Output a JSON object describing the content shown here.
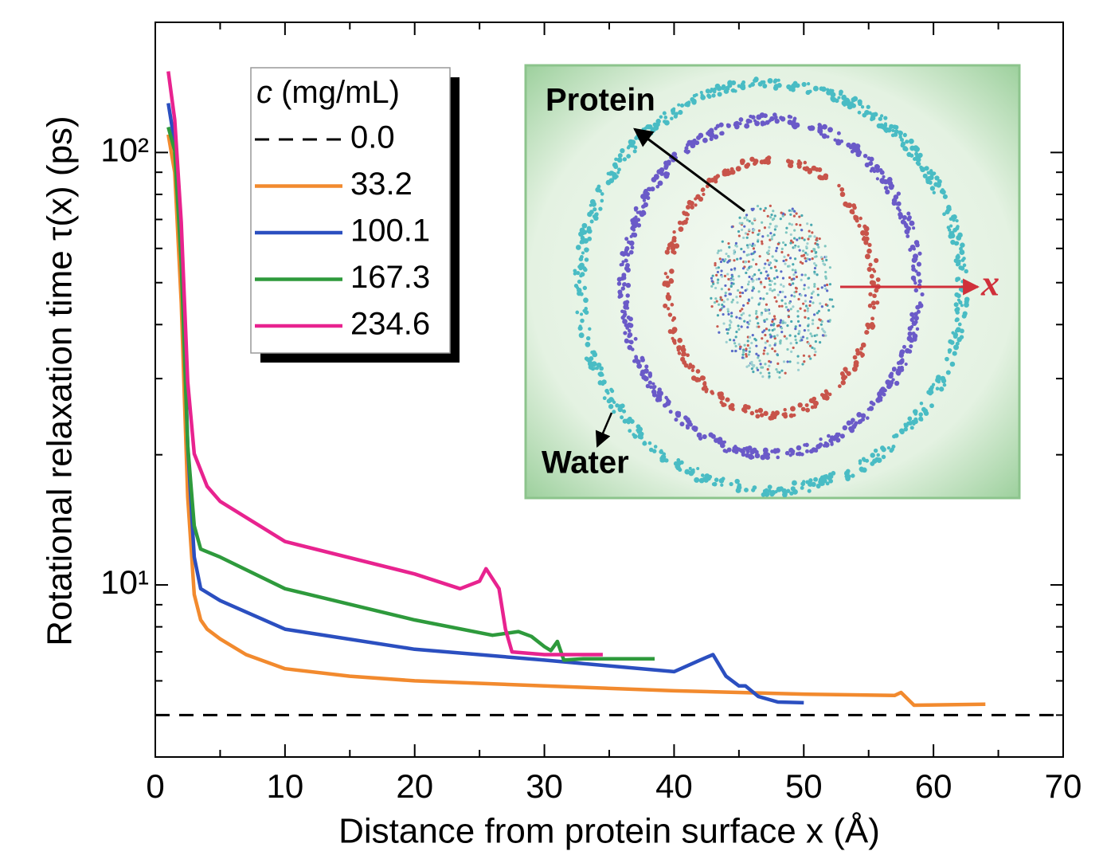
{
  "chart_data": {
    "type": "line",
    "x_label": "Distance from protein surface x (Å)",
    "y_label": "Rotational relaxation time τ(x) (ps)",
    "xlim": [
      0,
      70
    ],
    "xticks": [
      0,
      10,
      20,
      30,
      40,
      50,
      60,
      70
    ],
    "minor_xticks": [
      5,
      15,
      25,
      35,
      45,
      55,
      65
    ],
    "ylim": [
      4,
      200
    ],
    "log_y": true,
    "yticks": [
      {
        "value": 10,
        "label": "10¹"
      },
      {
        "value": 100,
        "label": "10²"
      }
    ],
    "minor_yticks": [
      5,
      6,
      7,
      8,
      9,
      20,
      30,
      40,
      50,
      60,
      70,
      80,
      90,
      200
    ],
    "legend_title": "c (mg/mL)",
    "legend_position": "upper left",
    "series": [
      {
        "name": "0.0",
        "color": "#000000",
        "dashed": true,
        "x": [
          0,
          70
        ],
        "values": [
          5,
          5
        ]
      },
      {
        "name": "33.2",
        "color": "#f28a2e",
        "x": [
          1,
          1.5,
          2,
          2.5,
          3,
          3.5,
          4,
          5,
          7,
          10,
          15,
          20,
          30,
          40,
          50,
          57,
          57.5,
          58.5,
          64
        ],
        "values": [
          110,
          90,
          45,
          16,
          9.5,
          8.3,
          7.9,
          7.5,
          6.9,
          6.4,
          6.15,
          6.0,
          5.84,
          5.69,
          5.59,
          5.55,
          5.64,
          5.27,
          5.3
        ]
      },
      {
        "name": "100.1",
        "color": "#2b4fc0",
        "x": [
          1,
          1.5,
          2,
          2.5,
          3,
          3.5,
          5,
          10,
          20,
          30,
          40,
          42,
          43,
          44,
          45,
          45.5,
          46.5,
          48,
          50
        ],
        "values": [
          130,
          105,
          63,
          21,
          11.6,
          9.8,
          9.2,
          7.9,
          7.1,
          6.7,
          6.3,
          6.7,
          6.9,
          6.15,
          5.84,
          5.84,
          5.52,
          5.36,
          5.34
        ]
      },
      {
        "name": "167.3",
        "color": "#2e9a3c",
        "x": [
          1,
          1.5,
          2,
          2.5,
          3,
          3.5,
          5,
          10,
          20,
          26,
          28,
          29,
          30,
          30.5,
          31,
          31.5,
          33,
          38.5
        ],
        "values": [
          114.5,
          101,
          55.5,
          21,
          13.7,
          12.1,
          11.6,
          9.8,
          8.3,
          7.65,
          7.8,
          7.6,
          7.2,
          7.05,
          7.4,
          6.7,
          6.75,
          6.75
        ]
      },
      {
        "name": "234.6",
        "color": "#e8238f",
        "x": [
          1,
          1.5,
          2,
          2.5,
          3,
          4,
          5,
          10,
          20,
          23.5,
          25,
          25.5,
          26.5,
          27,
          27.5,
          30,
          34.5
        ],
        "values": [
          154,
          119,
          68.9,
          29.5,
          20.1,
          16.9,
          15.6,
          12.6,
          10.6,
          9.8,
          10.2,
          10.9,
          9.8,
          7.9,
          7.0,
          6.9,
          6.9
        ]
      }
    ],
    "annotations": {
      "protein": "Protein",
      "water": "Water",
      "axis": "x"
    }
  }
}
